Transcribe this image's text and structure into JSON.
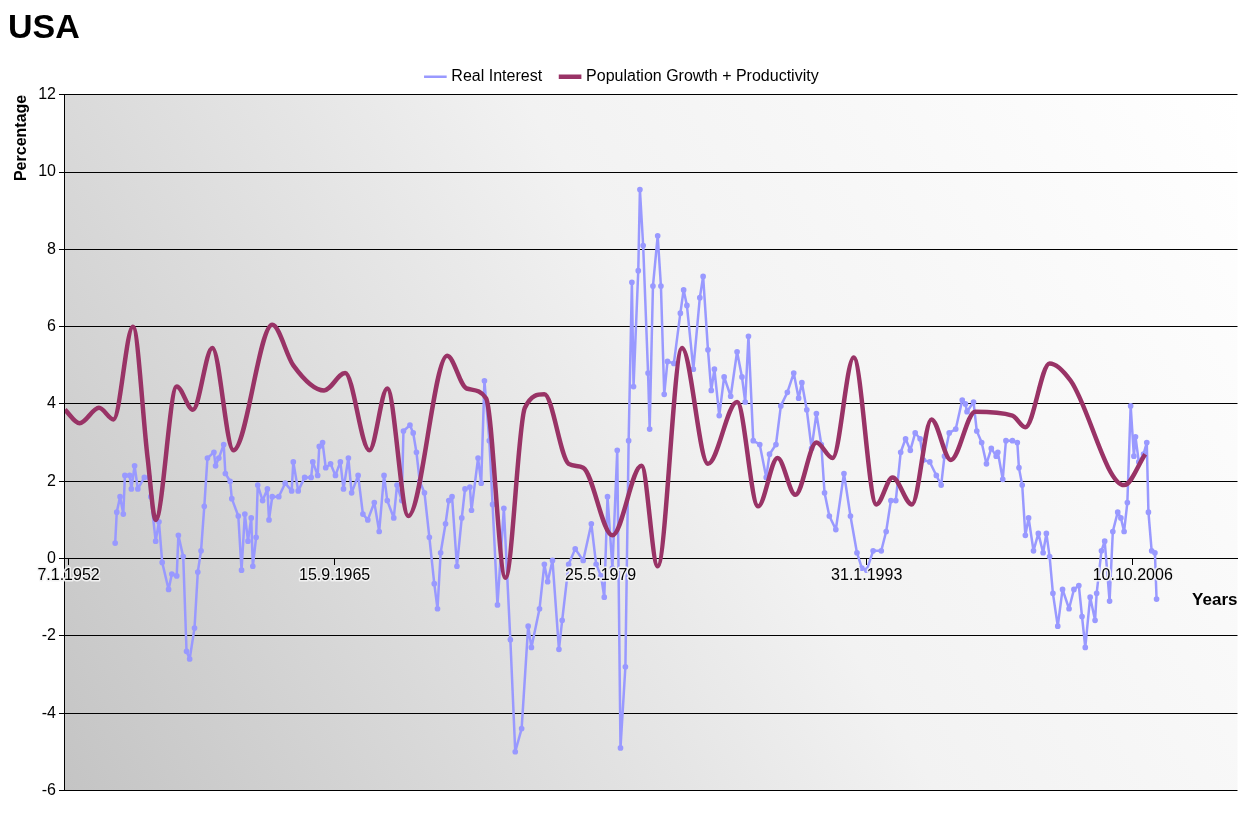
{
  "chart_data": {
    "type": "line",
    "title": "USA",
    "ylabel": "Percentage",
    "xlabel": "Years",
    "xlim": [
      "1951-11",
      "2012-03"
    ],
    "xticks": [
      {
        "value": "1952-01-07",
        "label": "7.1.1952"
      },
      {
        "value": "1965-09-15",
        "label": "15.9.1965"
      },
      {
        "value": "1979-05-25",
        "label": "25.5.1979"
      },
      {
        "value": "1993-01-31",
        "label": "31.1.1993"
      },
      {
        "value": "2006-10-10",
        "label": "10.10.2006"
      }
    ],
    "ylim": [
      -6,
      12
    ],
    "yticks": [
      -6,
      -4,
      -2,
      0,
      2,
      4,
      6,
      8,
      10,
      12
    ],
    "grid": "y",
    "legend": "top",
    "series": [
      {
        "name": "Real Interest",
        "color": "#9999ff",
        "marker": "circle",
        "x": [
          "1954-06",
          "1954-07",
          "1954-09",
          "1954-11",
          "1954-12",
          "1955-03",
          "1955-04",
          "1955-06",
          "1955-08",
          "1955-12",
          "1956-03",
          "1956-04",
          "1956-07",
          "1956-09",
          "1956-11",
          "1957-03",
          "1957-05",
          "1957-08",
          "1957-09",
          "1957-12",
          "1958-02",
          "1958-04",
          "1958-07",
          "1958-09",
          "1958-11",
          "1959-01",
          "1959-03",
          "1959-07",
          "1959-08",
          "1959-10",
          "1960-01",
          "1960-02",
          "1960-05",
          "1960-06",
          "1960-10",
          "1960-12",
          "1961-02",
          "1961-04",
          "1961-06",
          "1961-07",
          "1961-09",
          "1961-10",
          "1962-01",
          "1962-04",
          "1962-05",
          "1962-07",
          "1962-11",
          "1963-03",
          "1963-07",
          "1963-08",
          "1963-11",
          "1964-03",
          "1964-07",
          "1964-08",
          "1964-11",
          "1964-12",
          "1965-02",
          "1965-04",
          "1965-07",
          "1965-10",
          "1966-01",
          "1966-03",
          "1966-06",
          "1966-08",
          "1966-12",
          "1967-03",
          "1967-06",
          "1967-10",
          "1968-01",
          "1968-04",
          "1968-06",
          "1968-10",
          "1968-12",
          "1969-03",
          "1969-04",
          "1969-08",
          "1969-10",
          "1969-12",
          "1970-02",
          "1970-05",
          "1970-08",
          "1970-11",
          "1971-01",
          "1971-03",
          "1971-06",
          "1971-08",
          "1971-10",
          "1972-01",
          "1972-04",
          "1972-06",
          "1972-09",
          "1972-10",
          "1973-02",
          "1973-04",
          "1973-06",
          "1973-09",
          "1973-11",
          "1974-02",
          "1974-06",
          "1974-10",
          "1975-01",
          "1975-05",
          "1975-09",
          "1975-11",
          "1976-04",
          "1976-07",
          "1976-09",
          "1976-12",
          "1977-04",
          "1977-06",
          "1977-10",
          "1978-02",
          "1978-07",
          "1978-12",
          "1979-03",
          "1979-06",
          "1979-08",
          "1979-10",
          "1980-01",
          "1980-04",
          "1980-06",
          "1980-09",
          "1980-11",
          "1981-01",
          "1981-02",
          "1981-05",
          "1981-06",
          "1981-08",
          "1981-11",
          "1981-12",
          "1982-02",
          "1982-05",
          "1982-07",
          "1982-09",
          "1982-11",
          "1983-03",
          "1983-07",
          "1983-09",
          "1983-11",
          "1984-03",
          "1984-07",
          "1984-09",
          "1984-12",
          "1985-02",
          "1985-04",
          "1985-07",
          "1985-10",
          "1986-02",
          "1986-06",
          "1986-09",
          "1986-11",
          "1987-01",
          "1987-04",
          "1987-08",
          "1987-12",
          "1988-02",
          "1988-06",
          "1988-09",
          "1989-01",
          "1989-05",
          "1989-08",
          "1989-10",
          "1990-01",
          "1990-04",
          "1990-07",
          "1990-10",
          "1990-12",
          "1991-03",
          "1991-07",
          "1991-12",
          "1992-04",
          "1992-08",
          "1992-11",
          "1993-02",
          "1993-06",
          "1993-11",
          "1994-02",
          "1994-05",
          "1994-08",
          "1994-11",
          "1995-02",
          "1995-05",
          "1995-08",
          "1995-11",
          "1996-01",
          "1996-05",
          "1996-09",
          "1996-12",
          "1997-02",
          "1997-05",
          "1997-09",
          "1998-01",
          "1998-03",
          "1998-04",
          "1998-08",
          "1998-10",
          "1999-01",
          "1999-04",
          "1999-07",
          "1999-10",
          "1999-11",
          "2000-02",
          "2000-04",
          "2000-08",
          "2000-11",
          "2000-12",
          "2001-02",
          "2001-04",
          "2001-06",
          "2001-09",
          "2001-12",
          "2002-03",
          "2002-05",
          "2002-07",
          "2002-09",
          "2002-12",
          "2003-03",
          "2003-07",
          "2003-10",
          "2004-01",
          "2004-03",
          "2004-05",
          "2004-08",
          "2004-11",
          "2004-12",
          "2005-03",
          "2005-05",
          "2005-08",
          "2005-10",
          "2006-01",
          "2006-03",
          "2006-05",
          "2006-07",
          "2006-09",
          "2006-11",
          "2006-12",
          "2007-02",
          "2007-05",
          "2007-07",
          "2007-08",
          "2007-10",
          "2007-12",
          "2008-01"
        ],
        "values": [
          0.4,
          1.2,
          1.6,
          1.15,
          2.15,
          2.15,
          1.8,
          2.4,
          1.8,
          2.1,
          2.1,
          1.6,
          0.45,
          0.95,
          -0.1,
          -0.8,
          -0.4,
          -0.45,
          0.6,
          0.05,
          -2.4,
          -2.6,
          -1.8,
          -0.35,
          0.2,
          1.35,
          2.6,
          2.75,
          2.4,
          2.6,
          2.95,
          2.2,
          2.0,
          1.55,
          1.1,
          -0.3,
          1.15,
          0.45,
          1.05,
          -0.2,
          0.55,
          1.9,
          1.5,
          1.8,
          1.0,
          1.6,
          1.6,
          1.95,
          1.75,
          2.5,
          1.75,
          2.1,
          2.1,
          2.5,
          2.15,
          2.9,
          3.0,
          2.35,
          2.45,
          2.15,
          2.5,
          1.8,
          2.6,
          1.7,
          2.15,
          1.15,
          1.0,
          1.45,
          0.7,
          2.15,
          1.5,
          1.05,
          1.9,
          1.5,
          3.3,
          3.45,
          3.25,
          2.75,
          2.0,
          1.7,
          0.55,
          -0.65,
          -1.3,
          0.15,
          0.9,
          1.5,
          1.6,
          -0.2,
          1.05,
          1.8,
          1.85,
          1.25,
          2.6,
          1.95,
          4.6,
          3.05,
          1.4,
          -1.2,
          1.3,
          -2.1,
          -5.0,
          -4.4,
          -1.75,
          -2.3,
          -1.3,
          -0.15,
          -0.6,
          -0.05,
          -2.35,
          -1.6,
          -0.15,
          0.25,
          -0.05,
          0.9,
          -0.15,
          -0.45,
          -1.0,
          1.6,
          -0.25,
          2.8,
          -4.9,
          -2.8,
          3.05,
          7.15,
          4.45,
          7.45,
          9.55,
          8.1,
          4.8,
          3.35,
          7.05,
          8.35,
          7.05,
          4.25,
          5.1,
          5.05,
          6.35,
          6.95,
          6.55,
          4.9,
          6.75,
          7.3,
          5.4,
          4.35,
          4.9,
          3.7,
          4.7,
          4.2,
          5.35,
          4.7,
          4.05,
          5.75,
          3.05,
          2.95,
          2.1,
          2.7,
          2.95,
          3.95,
          4.3,
          4.8,
          4.15,
          4.55,
          3.85,
          2.85,
          3.75,
          2.95,
          1.7,
          1.1,
          0.75,
          2.2,
          1.1,
          0.15,
          -0.25,
          -0.3,
          0.2,
          0.2,
          0.7,
          1.5,
          1.5,
          2.75,
          3.1,
          2.8,
          3.25,
          3.1,
          2.55,
          2.5,
          2.15,
          1.9,
          2.65,
          3.25,
          3.35,
          4.1,
          4.0,
          3.8,
          4.05,
          3.3,
          3.0,
          2.45,
          2.85,
          2.65,
          2.75,
          2.05,
          3.05,
          3.05,
          3.0,
          2.35,
          1.9,
          0.6,
          1.05,
          0.2,
          0.65,
          0.15,
          0.65,
          0.05,
          -0.9,
          -1.75,
          -0.8,
          -1.3,
          -0.8,
          -0.7,
          -1.5,
          -2.3,
          -1.0,
          -1.6,
          -0.9,
          0.2,
          0.45,
          -1.1,
          0.7,
          1.2,
          1.05,
          0.7,
          1.45,
          3.95,
          2.65,
          3.15,
          2.5,
          2.7,
          3.0,
          1.2,
          0.2,
          0.15,
          -1.05
        ]
      },
      {
        "name": "Population Growth + Productivity",
        "color": "#993366",
        "marker": "none",
        "x": [
          "1951-11",
          "1952-08",
          "1953-08",
          "1954-05",
          "1955-05",
          "1956-02",
          "1956-07",
          "1957-08",
          "1958-06",
          "1959-06",
          "1960-07",
          "1962-07",
          "1963-08",
          "1965-03",
          "1966-04",
          "1967-07",
          "1968-06",
          "1969-07",
          "1971-07",
          "1972-07",
          "1973-07",
          "1974-07",
          "1975-07",
          "1976-07",
          "1977-10",
          "1978-07",
          "1980-01",
          "1981-07",
          "1982-05",
          "1983-08",
          "1984-12",
          "1986-06",
          "1987-07",
          "1988-07",
          "1989-06",
          "1990-07",
          "1991-05",
          "1992-06",
          "1993-08",
          "1994-06",
          "1995-06",
          "1996-06",
          "1997-06",
          "1998-09",
          "2000-08",
          "2001-04",
          "2002-07",
          "2003-08",
          "2006-05",
          "2007-06"
        ],
        "values": [
          3.85,
          3.5,
          3.9,
          3.6,
          6.0,
          2.6,
          1.0,
          4.45,
          3.85,
          5.45,
          2.8,
          6.05,
          5.0,
          4.35,
          4.8,
          2.8,
          4.4,
          1.1,
          5.25,
          4.4,
          4.15,
          -0.5,
          3.9,
          4.25,
          2.45,
          2.35,
          0.6,
          2.4,
          -0.2,
          5.45,
          2.45,
          4.05,
          1.35,
          2.6,
          1.65,
          3.0,
          2.6,
          5.2,
          1.4,
          2.1,
          1.4,
          3.6,
          2.55,
          3.8,
          3.7,
          3.4,
          5.05,
          4.6,
          1.9,
          2.7
        ]
      }
    ]
  }
}
